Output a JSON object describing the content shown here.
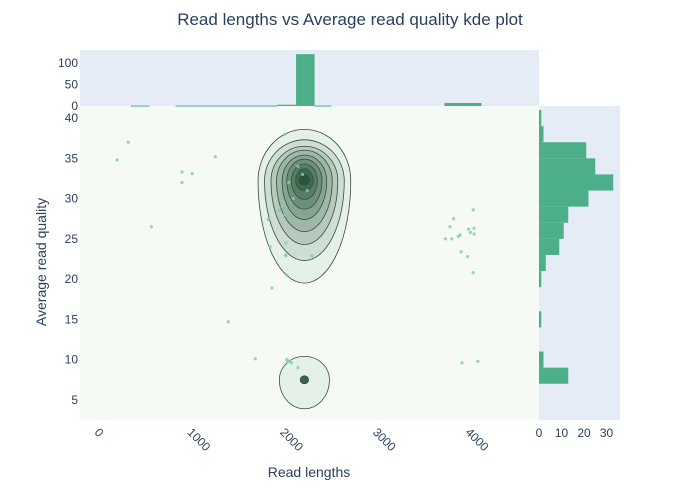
{
  "chart_data": {
    "type": "scatter",
    "title": "Read lengths vs Average read quality kde plot",
    "xlabel": "Read lengths",
    "ylabel": "Average read quality",
    "xlim": [
      -150,
      4800
    ],
    "ylim": [
      2.5,
      41.5
    ],
    "x_ticks": [
      0,
      1000,
      2000,
      3000,
      4000
    ],
    "y_ticks": [
      5,
      10,
      15,
      20,
      25,
      30,
      35,
      40
    ],
    "colors": {
      "plot_bg": "#f6faf4",
      "marginal_bg": "#e5ecf6",
      "bar": "#4caf8a",
      "point": "#7fd0a8",
      "contour_line": "#3a4a40",
      "contour_fill_dark": "#1a4d2e",
      "contour_fill_light": "#e3eee5"
    },
    "points": [
      [
        250,
        34.8
      ],
      [
        370,
        37
      ],
      [
        620,
        26.5
      ],
      [
        950,
        32
      ],
      [
        950,
        33.3
      ],
      [
        1060,
        33.1
      ],
      [
        1310,
        35.2
      ],
      [
        1450,
        14.7
      ],
      [
        1740,
        10.1
      ],
      [
        1880,
        27.4
      ],
      [
        1900,
        24
      ],
      [
        1920,
        18.9
      ],
      [
        2000,
        28.5
      ],
      [
        2030,
        29
      ],
      [
        2050,
        29.5
      ],
      [
        2060,
        28
      ],
      [
        2060,
        38
      ],
      [
        2070,
        24.5
      ],
      [
        2070,
        22.9
      ],
      [
        2070,
        23
      ],
      [
        2080,
        20.5
      ],
      [
        2080,
        10
      ],
      [
        2090,
        9.8
      ],
      [
        2110,
        9.8
      ],
      [
        2130,
        9.6
      ],
      [
        2200,
        9
      ],
      [
        2350,
        22.9
      ],
      [
        2100,
        32
      ],
      [
        2150,
        30
      ],
      [
        2200,
        34
      ],
      [
        2250,
        33
      ],
      [
        2300,
        31
      ],
      [
        3790,
        25
      ],
      [
        3860,
        25
      ],
      [
        3880,
        27.5
      ],
      [
        3840,
        26.5
      ],
      [
        3930,
        25.3
      ],
      [
        3950,
        25.5
      ],
      [
        3960,
        23.4
      ],
      [
        4030,
        22.8
      ],
      [
        4040,
        26.2
      ],
      [
        4060,
        25.8
      ],
      [
        4090,
        28.6
      ],
      [
        4090,
        20.8
      ],
      [
        4100,
        26.3
      ],
      [
        4100,
        25.6
      ],
      [
        3970,
        9.6
      ],
      [
        4140,
        9.8
      ]
    ],
    "kde_top": {
      "x_center": 2270,
      "y_center": 32.2,
      "levels": [
        {
          "x_halfwidth": 500,
          "y_low": 19.5,
          "y_high": 38.6
        },
        {
          "x_halfwidth": 430,
          "y_low": 22.3,
          "y_high": 37.3
        },
        {
          "x_halfwidth": 360,
          "y_low": 24.3,
          "y_high": 36.5
        },
        {
          "x_halfwidth": 300,
          "y_low": 25.9,
          "y_high": 36.0
        },
        {
          "x_halfwidth": 240,
          "y_low": 27.4,
          "y_high": 35.4
        },
        {
          "x_halfwidth": 190,
          "y_low": 28.7,
          "y_high": 34.9
        },
        {
          "x_halfwidth": 140,
          "y_low": 29.9,
          "y_high": 34.3
        },
        {
          "x_halfwidth": 95,
          "y_low": 31.0,
          "y_high": 33.7
        },
        {
          "x_halfwidth": 55,
          "y_low": 31.7,
          "y_high": 33.0
        }
      ]
    },
    "kde_bottom": {
      "x_center": 2270,
      "y_center": 7.5,
      "levels": [
        {
          "x_halfwidth": 270,
          "y_low": 3.9,
          "y_high": 10.4
        },
        {
          "x_halfwidth": 45,
          "y_low": 7.0,
          "y_high": 8.0
        }
      ]
    },
    "top_histogram": {
      "ylim": [
        0,
        125
      ],
      "y_ticks": [
        0,
        50,
        100
      ],
      "bins": [
        {
          "x0": 400,
          "x1": 600,
          "count": 1
        },
        {
          "x0": 880,
          "x1": 1980,
          "count": 1
        },
        {
          "x0": 1980,
          "x1": 2180,
          "count": 3
        },
        {
          "x0": 2180,
          "x1": 2380,
          "count": 120
        },
        {
          "x0": 2380,
          "x1": 2560,
          "count": 1
        },
        {
          "x0": 3780,
          "x1": 4180,
          "count": 7
        }
      ]
    },
    "right_histogram": {
      "xlim": [
        0,
        36
      ],
      "x_ticks": [
        0,
        10,
        20,
        30
      ],
      "bins": [
        {
          "y0": 7,
          "y1": 9,
          "count": 13
        },
        {
          "y0": 9,
          "y1": 11,
          "count": 2
        },
        {
          "y0": 14,
          "y1": 16,
          "count": 1
        },
        {
          "y0": 19,
          "y1": 21,
          "count": 1
        },
        {
          "y0": 21,
          "y1": 23,
          "count": 3
        },
        {
          "y0": 23,
          "y1": 25,
          "count": 9
        },
        {
          "y0": 25,
          "y1": 27,
          "count": 11
        },
        {
          "y0": 27,
          "y1": 29,
          "count": 13
        },
        {
          "y0": 29,
          "y1": 31,
          "count": 22
        },
        {
          "y0": 31,
          "y1": 33,
          "count": 33
        },
        {
          "y0": 33,
          "y1": 35,
          "count": 25
        },
        {
          "y0": 35,
          "y1": 37,
          "count": 21
        },
        {
          "y0": 37,
          "y1": 39,
          "count": 2
        },
        {
          "y0": 39,
          "y1": 41,
          "count": 1
        }
      ]
    }
  }
}
